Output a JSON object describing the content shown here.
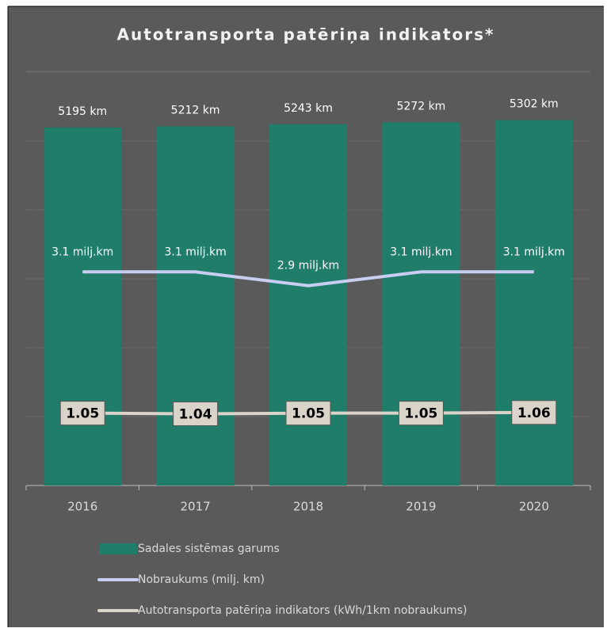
{
  "chart_data": {
    "type": "bar",
    "title": "Autotransporta patēriņa indikators*",
    "categories": [
      "2016",
      "2017",
      "2018",
      "2019",
      "2020"
    ],
    "ylim": [
      0,
      6000
    ],
    "yticks": [
      0,
      1000,
      2000,
      3000,
      4000,
      5000,
      6000
    ],
    "y2lim": [
      0,
      6
    ],
    "grid": true,
    "legend": "bottom",
    "series": [
      {
        "name": "Sadales sistēmas garums",
        "type": "bar",
        "color": "#1f7d69",
        "values": [
          5195,
          5212,
          5243,
          5272,
          5302
        ],
        "value_labels": [
          "5195 km",
          "5212 km",
          "5243 km",
          "5272 km",
          "5302 km"
        ]
      },
      {
        "name": "Nobraukums (milj. km)",
        "type": "line",
        "axis": "y2",
        "color": "#c8cdf2",
        "values": [
          3.1,
          3.1,
          2.9,
          3.1,
          3.1
        ],
        "value_labels": [
          "3.1 milj.km",
          "3.1 milj.km",
          "2.9 milj.km",
          "3.1 milj.km",
          "3.1 milj.km"
        ]
      },
      {
        "name": "Autotransporta patēriņa indikators (kWh/1km nobraukums)",
        "type": "line",
        "axis": "y2",
        "color": "#d9d3c9",
        "values": [
          1.05,
          1.04,
          1.05,
          1.05,
          1.06
        ]
      }
    ]
  }
}
